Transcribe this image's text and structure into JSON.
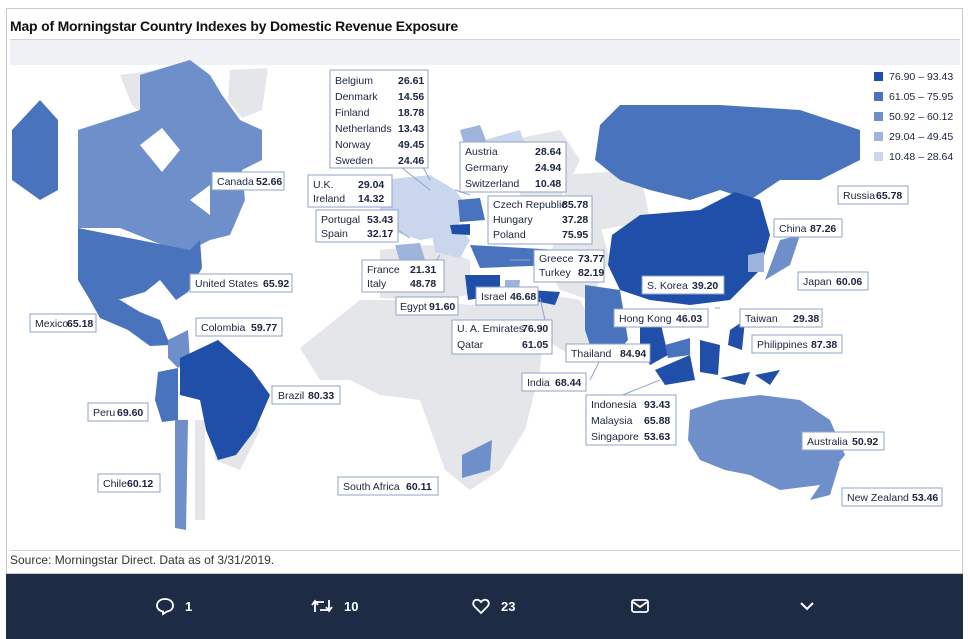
{
  "title": "Map of Morningstar Country Indexes by Domestic Revenue Exposure",
  "source": "Source: Morningstar Direct. Data as of 3/31/2019.",
  "legend": [
    {
      "label": "76.90 – 93.43",
      "color": "#1f4fa8"
    },
    {
      "label": "61.05 – 75.95",
      "color": "#4a73bd"
    },
    {
      "label": "50.92 – 60.12",
      "color": "#6f8fcb"
    },
    {
      "label": "29.04 – 49.45",
      "color": "#9fb4dc"
    },
    {
      "label": "10.48 – 28.64",
      "color": "#c9d6ee"
    }
  ],
  "labels": {
    "canada": {
      "name": "Canada",
      "value": "52.66"
    },
    "united_states": {
      "name": "United States",
      "value": "65.92"
    },
    "mexico": {
      "name": "Mexico",
      "value": "65.18"
    },
    "colombia": {
      "name": "Colombia",
      "value": "59.77"
    },
    "brazil": {
      "name": "Brazil",
      "value": "80.33"
    },
    "peru": {
      "name": "Peru",
      "value": "69.60"
    },
    "chile": {
      "name": "Chile",
      "value": "60.12"
    },
    "south_africa": {
      "name": "South Africa",
      "value": "60.11"
    },
    "egypt": {
      "name": "Egypt",
      "value": "91.60"
    },
    "israel": {
      "name": "Israel",
      "value": "46.68"
    },
    "india": {
      "name": "India",
      "value": "68.44"
    },
    "thailand": {
      "name": "Thailand",
      "value": "84.94"
    },
    "hong_kong": {
      "name": "Hong Kong",
      "value": "46.03"
    },
    "s_korea": {
      "name": "S. Korea",
      "value": "39.20"
    },
    "china": {
      "name": "China",
      "value": "87.26"
    },
    "japan": {
      "name": "Japan",
      "value": "60.06"
    },
    "russia": {
      "name": "Russia",
      "value": "65.78"
    },
    "taiwan": {
      "name": "Taiwan",
      "value": "29.38"
    },
    "philippines": {
      "name": "Philippines",
      "value": "87.38"
    },
    "australia": {
      "name": "Australia",
      "value": "50.92"
    },
    "new_zealand": {
      "name": "New Zealand",
      "value": "53.46"
    }
  },
  "group_boxes": {
    "nordics": [
      {
        "name": "Belgium",
        "value": "26.61"
      },
      {
        "name": "Denmark",
        "value": "14.56"
      },
      {
        "name": "Finland",
        "value": "18.78"
      },
      {
        "name": "Netherlands",
        "value": "13.43"
      },
      {
        "name": "Norway",
        "value": "49.45"
      },
      {
        "name": "Sweden",
        "value": "24.46"
      }
    ],
    "uk_ireland": [
      {
        "name": "U.K.",
        "value": "29.04"
      },
      {
        "name": "Ireland",
        "value": "14.32"
      }
    ],
    "iberia": [
      {
        "name": "Portugal",
        "value": "53.43"
      },
      {
        "name": "Spain",
        "value": "32.17"
      }
    ],
    "france_italy": [
      {
        "name": "France",
        "value": "21.31"
      },
      {
        "name": "Italy",
        "value": "48.78"
      }
    ],
    "central": [
      {
        "name": "Austria",
        "value": "28.64"
      },
      {
        "name": "Germany",
        "value": "24.94"
      },
      {
        "name": "Switzerland",
        "value": "10.48"
      }
    ],
    "eastern": [
      {
        "name": "Czech Republic",
        "value": "85.78"
      },
      {
        "name": "Hungary",
        "value": "37.28"
      },
      {
        "name": "Poland",
        "value": "75.95"
      }
    ],
    "greece_turkey": [
      {
        "name": "Greece",
        "value": "73.77"
      },
      {
        "name": "Turkey",
        "value": "82.19"
      }
    ],
    "gulf": [
      {
        "name": "U. A. Emirates",
        "value": "76.90"
      },
      {
        "name": "Qatar",
        "value": "61.05"
      }
    ],
    "asean": [
      {
        "name": "Indonesia",
        "value": "93.43"
      },
      {
        "name": "Malaysia",
        "value": "65.88"
      },
      {
        "name": "Singapore",
        "value": "53.63"
      }
    ]
  },
  "colors": {
    "dark": "#1f4fa8",
    "mid": "#4a73bd",
    "mid2": "#6f8fcb",
    "light": "#9fb4dc",
    "pale": "#c9d6ee",
    "grey": "#e4e6ea",
    "bar": "#1d2b44"
  },
  "actions": {
    "reply": {
      "icon": "reply-icon",
      "count": "1"
    },
    "retweet": {
      "icon": "retweet-icon",
      "count": "10"
    },
    "like": {
      "icon": "heart-icon",
      "count": "23"
    },
    "dm": {
      "icon": "mail-icon"
    },
    "more": {
      "icon": "chevron-down-icon"
    }
  }
}
